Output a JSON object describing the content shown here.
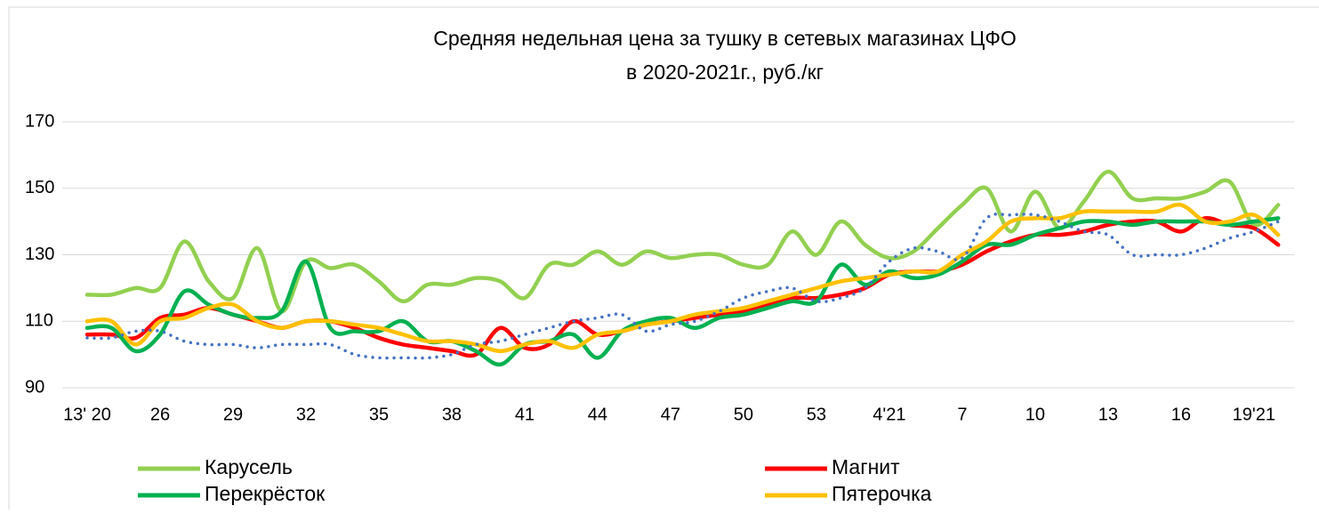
{
  "chart_data": {
    "type": "line",
    "title": [
      "Средняя недельная цена за тушку в сетевых магазинах ЦФО",
      "в 2020-2021г., руб./кг"
    ],
    "categories": [
      "13' 20",
      null,
      null,
      "26",
      null,
      null,
      "29",
      null,
      null,
      "32",
      null,
      null,
      "35",
      null,
      null,
      "38",
      null,
      null,
      "41",
      null,
      null,
      "44",
      null,
      null,
      "47",
      null,
      null,
      "50",
      null,
      null,
      "53",
      null,
      null,
      "4'21",
      null,
      null,
      "7",
      null,
      null,
      "10",
      null,
      null,
      "13",
      null,
      null,
      "16",
      null,
      null,
      "19'21",
      null
    ],
    "ylim": [
      90,
      170
    ],
    "yticks": [
      90,
      110,
      130,
      150,
      170
    ],
    "grid": true,
    "smooth": true,
    "legend": "bottom",
    "series": [
      {
        "name": "Карусель",
        "color": "#92d050",
        "values": [
          118,
          118,
          120,
          120,
          134,
          122,
          117,
          132,
          113,
          128,
          126,
          127,
          122,
          116,
          121,
          121,
          123,
          122,
          117,
          127,
          127,
          131,
          127,
          131,
          129,
          130,
          130,
          127,
          127,
          137,
          130,
          140,
          133,
          129,
          131,
          138,
          145,
          150,
          137,
          149,
          138,
          146,
          155,
          147,
          147,
          147,
          149,
          152,
          139,
          145
        ]
      },
      {
        "name": "Магнит",
        "color": "#ff0000",
        "values": [
          106,
          106,
          105,
          111,
          112,
          114,
          112,
          110,
          108,
          110,
          110,
          108,
          105,
          103,
          102,
          101,
          100,
          108,
          102,
          103,
          110,
          106,
          107,
          109,
          110,
          111,
          112,
          113,
          115,
          117,
          117,
          118,
          120,
          124,
          125,
          125,
          127,
          131,
          134,
          136,
          136,
          137,
          139,
          140,
          140,
          137,
          141,
          139,
          138,
          133
        ]
      },
      {
        "name": "Перекрёсток",
        "color": "#00b050",
        "values": [
          108,
          108,
          101,
          106,
          119,
          115,
          112,
          111,
          113,
          128,
          108,
          107,
          107,
          110,
          104,
          104,
          101,
          97,
          103,
          104,
          106,
          99,
          107,
          110,
          111,
          108,
          111,
          112,
          114,
          116,
          116,
          127,
          121,
          125,
          123,
          124,
          128,
          133,
          133,
          136,
          138,
          140,
          140,
          139,
          140,
          140,
          140,
          139,
          140,
          141
        ]
      },
      {
        "name": "Пятерочка",
        "color": "#ffc000",
        "values": [
          110,
          110,
          103,
          110,
          111,
          114,
          115,
          110,
          108,
          110,
          110,
          109,
          108,
          106,
          104,
          104,
          103,
          101,
          103,
          104,
          102,
          106,
          107,
          109,
          110,
          112,
          113,
          114,
          116,
          118,
          120,
          122,
          123,
          124,
          125,
          125,
          130,
          134,
          140,
          141,
          141,
          143,
          143,
          143,
          143,
          145,
          140,
          140,
          142,
          136
        ]
      },
      {
        "color": "#4472c4",
        "dash": "dotted",
        "values": [
          105,
          105,
          107,
          107,
          104,
          103,
          103,
          102,
          103,
          103,
          103,
          100,
          99,
          99,
          99,
          100,
          103,
          104,
          106,
          108,
          110,
          111,
          112,
          107,
          109,
          110,
          113,
          117,
          119,
          120,
          116,
          117,
          120,
          128,
          132,
          131,
          129,
          141,
          142,
          142,
          140,
          137,
          136,
          130,
          130,
          130,
          132,
          135,
          137,
          140
        ]
      }
    ]
  }
}
